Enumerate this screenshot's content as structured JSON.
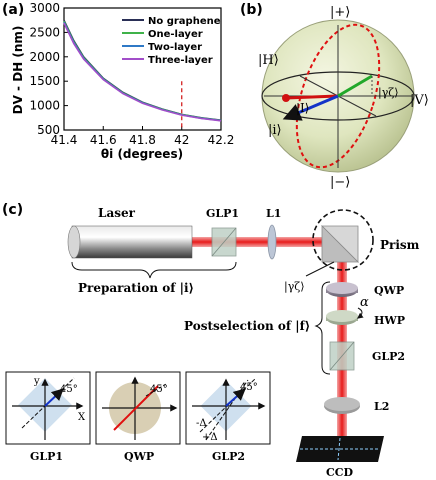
{
  "panels": {
    "a": "(a)",
    "b": "(b)",
    "c": "(c)"
  },
  "chart_data": {
    "type": "line",
    "xlabel": "θi (degrees)",
    "ylabel": "DV - DH (nm)",
    "xlim": [
      41.4,
      42.2
    ],
    "ylim": [
      500,
      3000
    ],
    "x_ticks": [
      "41.4",
      "41.6",
      "41.8",
      "42",
      "42.2"
    ],
    "y_ticks": [
      "500",
      "1000",
      "1500",
      "2000",
      "2500",
      "3000"
    ],
    "marker_x": 42.0,
    "legend_position": "top-right",
    "series": [
      {
        "name": "No graphene",
        "color": "#2a2f56",
        "x": [
          41.4,
          41.45,
          41.5,
          41.6,
          41.7,
          41.8,
          41.9,
          42.0,
          42.1,
          42.2
        ],
        "y": [
          2750,
          2330,
          2000,
          1560,
          1270,
          1070,
          930,
          820,
          750,
          700
        ]
      },
      {
        "name": "One-layer",
        "color": "#3fb24a",
        "x": [
          41.4,
          41.45,
          41.5,
          41.6,
          41.7,
          41.8,
          41.9,
          42.0,
          42.1,
          42.2
        ],
        "y": [
          2730,
          2310,
          1985,
          1550,
          1260,
          1062,
          925,
          815,
          745,
          696
        ]
      },
      {
        "name": "Two-layer",
        "color": "#2f79c6",
        "x": [
          41.4,
          41.45,
          41.5,
          41.6,
          41.7,
          41.8,
          41.9,
          42.0,
          42.1,
          42.2
        ],
        "y": [
          2710,
          2290,
          1970,
          1540,
          1252,
          1055,
          918,
          810,
          740,
          692
        ]
      },
      {
        "name": "Three-layer",
        "color": "#a24ec9",
        "x": [
          41.4,
          41.45,
          41.5,
          41.6,
          41.7,
          41.8,
          41.9,
          42.0,
          42.1,
          42.2
        ],
        "y": [
          2690,
          2270,
          1955,
          1530,
          1245,
          1048,
          912,
          805,
          736,
          688
        ]
      }
    ]
  },
  "sphere": {
    "plus": "|+⟩",
    "minus": "|−⟩",
    "H": "|H⟩",
    "V": "|V⟩",
    "I": "|I⟩",
    "i": "|i⟩",
    "gamma": "|γζ⟩"
  },
  "setup": {
    "laser": "Laser",
    "glp1": "GLP1",
    "l1": "L1",
    "prism": "Prism",
    "preparation": "Preparation of |i⟩",
    "gamma": "|γζ⟩",
    "qwp": "QWP",
    "hwp": "HWP",
    "alpha": "α",
    "postselection": "Postselection of |f⟩",
    "glp2": "GLP2",
    "l2": "L2",
    "ccd": "CCD"
  },
  "insets": [
    {
      "name": "GLP1",
      "angle": "45°",
      "x": "X",
      "y": "y"
    },
    {
      "name": "QWP",
      "angle": "45°"
    },
    {
      "name": "GLP2",
      "angle": "45°",
      "delta_minus": "-Δ",
      "delta_plus": "+Δ"
    }
  ]
}
